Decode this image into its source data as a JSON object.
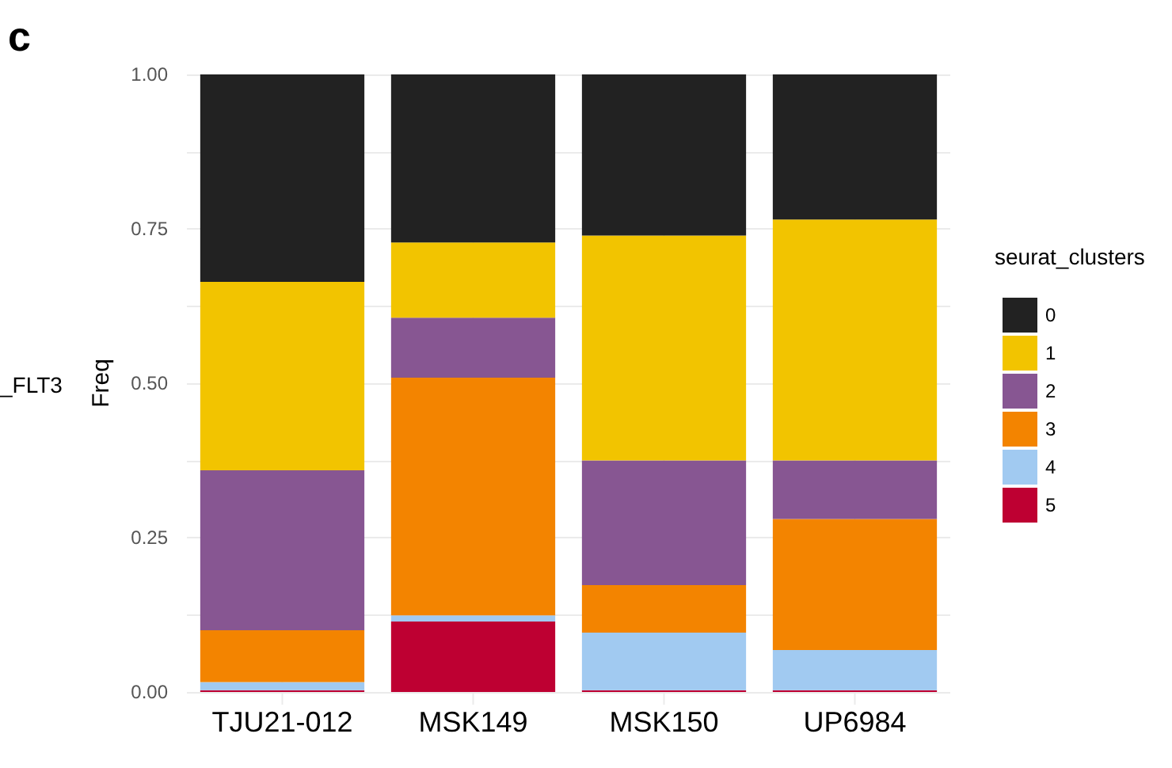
{
  "chart_data": {
    "type": "bar",
    "stacked": true,
    "title": "c",
    "ylabel": "Freq",
    "legend_title": "seurat_clusters",
    "annotations": [
      "_FLT3"
    ],
    "categories": [
      "TJU21-012",
      "MSK149",
      "MSK150",
      "UP6984"
    ],
    "series": [
      {
        "name": "5",
        "color": "#be0032",
        "values": [
          0.003,
          0.114,
          0.003,
          0.003
        ]
      },
      {
        "name": "4",
        "color": "#a1caf1",
        "values": [
          0.013,
          0.01,
          0.093,
          0.065
        ]
      },
      {
        "name": "3",
        "color": "#f38400",
        "values": [
          0.084,
          0.385,
          0.077,
          0.212
        ]
      },
      {
        "name": "2",
        "color": "#875692",
        "values": [
          0.259,
          0.097,
          0.202,
          0.095
        ]
      },
      {
        "name": "1",
        "color": "#f2c400",
        "values": [
          0.305,
          0.122,
          0.364,
          0.39
        ]
      },
      {
        "name": "0",
        "color": "#222222",
        "values": [
          0.336,
          0.272,
          0.261,
          0.235
        ]
      }
    ],
    "ylim": [
      0,
      1.0
    ],
    "yticks": [
      {
        "value": 0,
        "label": "0.00"
      },
      {
        "value": 0.125,
        "label": null
      },
      {
        "value": 0.25,
        "label": "0.25"
      },
      {
        "value": 0.375,
        "label": null
      },
      {
        "value": 0.5,
        "label": "0.50"
      },
      {
        "value": 0.625,
        "label": null
      },
      {
        "value": 0.75,
        "label": "0.75"
      },
      {
        "value": 0.875,
        "label": null
      },
      {
        "value": 1,
        "label": "1.00"
      }
    ],
    "grid": true,
    "legend": "right"
  }
}
